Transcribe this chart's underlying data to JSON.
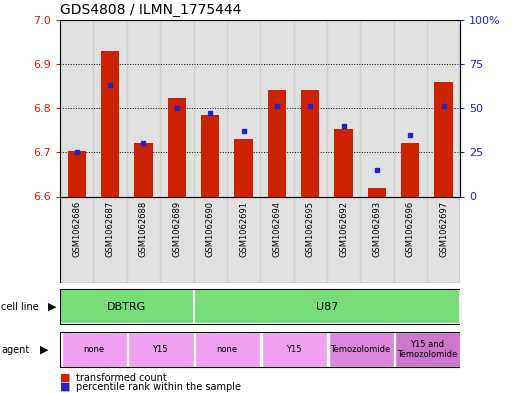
{
  "title": "GDS4808 / ILMN_1775444",
  "samples": [
    "GSM1062686",
    "GSM1062687",
    "GSM1062688",
    "GSM1062689",
    "GSM1062690",
    "GSM1062691",
    "GSM1062694",
    "GSM1062695",
    "GSM1062692",
    "GSM1062693",
    "GSM1062696",
    "GSM1062697"
  ],
  "transformed_count": [
    6.703,
    6.928,
    6.722,
    6.822,
    6.784,
    6.73,
    6.84,
    6.84,
    6.753,
    6.62,
    6.72,
    6.86
  ],
  "percentile_rank": [
    25,
    63,
    30,
    50,
    47,
    37,
    51,
    51,
    40,
    15,
    35,
    51
  ],
  "y_min": 6.6,
  "y_max": 7.0,
  "y_ticks": [
    6.6,
    6.7,
    6.8,
    6.9,
    7.0
  ],
  "y2_ticks": [
    0,
    25,
    50,
    75,
    100
  ],
  "bar_color": "#cc2200",
  "dot_color": "#2222cc",
  "bar_bottom": 6.6,
  "cell_line_color": "#77dd77",
  "agent_colors": [
    "#f0a0f0",
    "#f0a0f0",
    "#f0a0f0",
    "#f0a0f0",
    "#dd88dd",
    "#cc77cc"
  ],
  "tick_bg_color": "#cccccc",
  "title_fontsize": 10,
  "tick_fontsize": 8,
  "sample_fontsize": 6,
  "annot_fontsize": 8
}
